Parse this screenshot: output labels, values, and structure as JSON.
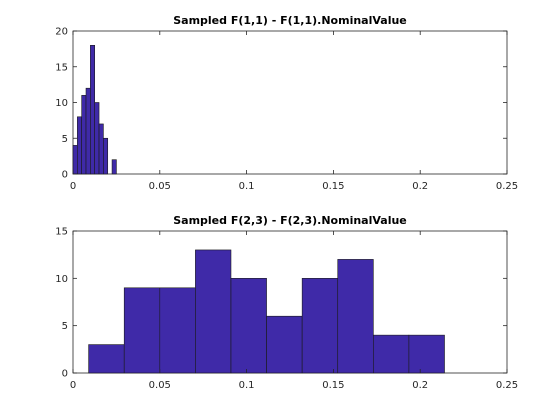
{
  "chart_data": [
    {
      "type": "bar",
      "title": "Sampled  F(1,1) - F(1,1).NominalValue",
      "xlabel": "",
      "ylabel": "",
      "xlim": [
        0,
        0.25
      ],
      "ylim": [
        0,
        20
      ],
      "xticks": [
        0,
        0.05,
        0.1,
        0.15,
        0.2,
        0.25
      ],
      "xtick_labels": [
        "0",
        "0.05",
        "0.1",
        "0.15",
        "0.2",
        "0.25"
      ],
      "yticks": [
        0,
        5,
        10,
        15,
        20
      ],
      "ytick_labels": [
        "0",
        "5",
        "10",
        "15",
        "20"
      ],
      "bin_edges": [
        0.0,
        0.0025,
        0.005,
        0.0075,
        0.01,
        0.0125,
        0.015,
        0.0175,
        0.02,
        0.0225,
        0.025,
        0.0275
      ],
      "values": [
        4,
        8,
        11,
        12,
        18,
        10,
        7,
        5,
        0,
        2,
        0
      ],
      "grid": false,
      "bar_color": "#3f2aa8"
    },
    {
      "type": "bar",
      "title": "Sampled  F(2,3) - F(2,3).NominalValue",
      "xlabel": "",
      "ylabel": "",
      "xlim": [
        0,
        0.25
      ],
      "ylim": [
        0,
        15
      ],
      "xticks": [
        0,
        0.05,
        0.1,
        0.15,
        0.2,
        0.25
      ],
      "xtick_labels": [
        "0",
        "0.05",
        "0.1",
        "0.15",
        "0.2",
        "0.25"
      ],
      "yticks": [
        0,
        5,
        10,
        15
      ],
      "ytick_labels": [
        "0",
        "5",
        "10",
        "15"
      ],
      "bin_edges": [
        0.009,
        0.0295,
        0.05,
        0.0705,
        0.091,
        0.1115,
        0.132,
        0.1525,
        0.173,
        0.1935,
        0.214
      ],
      "values": [
        3,
        9,
        9,
        13,
        10,
        6,
        10,
        12,
        4,
        4
      ],
      "grid": false,
      "bar_color": "#3f2aa8"
    }
  ]
}
